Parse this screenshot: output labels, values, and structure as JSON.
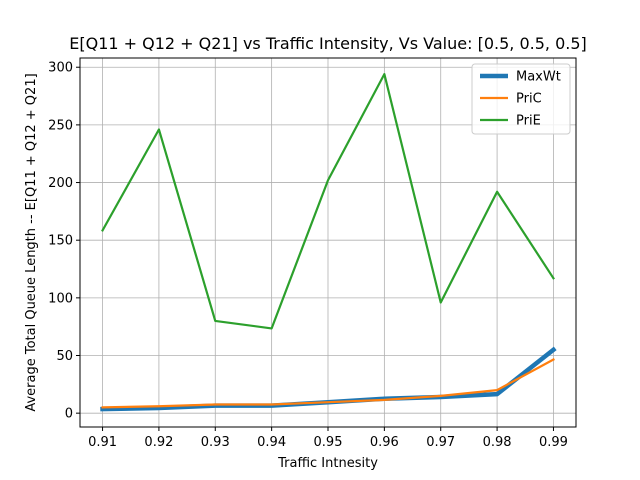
{
  "chart_data": {
    "type": "line",
    "title": "E[Q11 + Q12 + Q21] vs Traffic Intensity, Vs Value: [0.5, 0.5, 0.5]",
    "xlabel": "Traffic Intnesity",
    "ylabel": "Average Total Queue Length -- E[Q11 + Q12 + Q21]",
    "x": [
      0.91,
      0.92,
      0.93,
      0.94,
      0.95,
      0.96,
      0.97,
      0.98,
      0.99
    ],
    "x_tick_labels": [
      "0.91",
      "0.92",
      "0.93",
      "0.94",
      "0.95",
      "0.96",
      "0.97",
      "0.98",
      "0.99"
    ],
    "y_ticks": [
      0,
      50,
      100,
      150,
      200,
      250,
      300
    ],
    "y_tick_labels": [
      "0",
      "50",
      "100",
      "150",
      "200",
      "250",
      "300"
    ],
    "xlim": [
      0.906,
      0.994
    ],
    "ylim": [
      -12,
      308
    ],
    "grid": true,
    "legend_position": "top-right",
    "series": [
      {
        "name": "MaxWt",
        "color": "#1f77b4",
        "emphasis": "thick",
        "values": [
          3.5,
          4.5,
          6.5,
          6.5,
          9.5,
          12.5,
          14.0,
          16.5,
          55.0
        ]
      },
      {
        "name": "PriC",
        "color": "#ff7f0e",
        "emphasis": "normal",
        "values": [
          5.0,
          6.0,
          7.5,
          7.5,
          9.5,
          11.5,
          15.0,
          20.0,
          46.5
        ]
      },
      {
        "name": "PriE",
        "color": "#2ca02c",
        "emphasis": "normal",
        "values": [
          158.5,
          246.0,
          80.0,
          73.5,
          202.0,
          294.0,
          96.0,
          192.0,
          117.0
        ]
      }
    ]
  }
}
